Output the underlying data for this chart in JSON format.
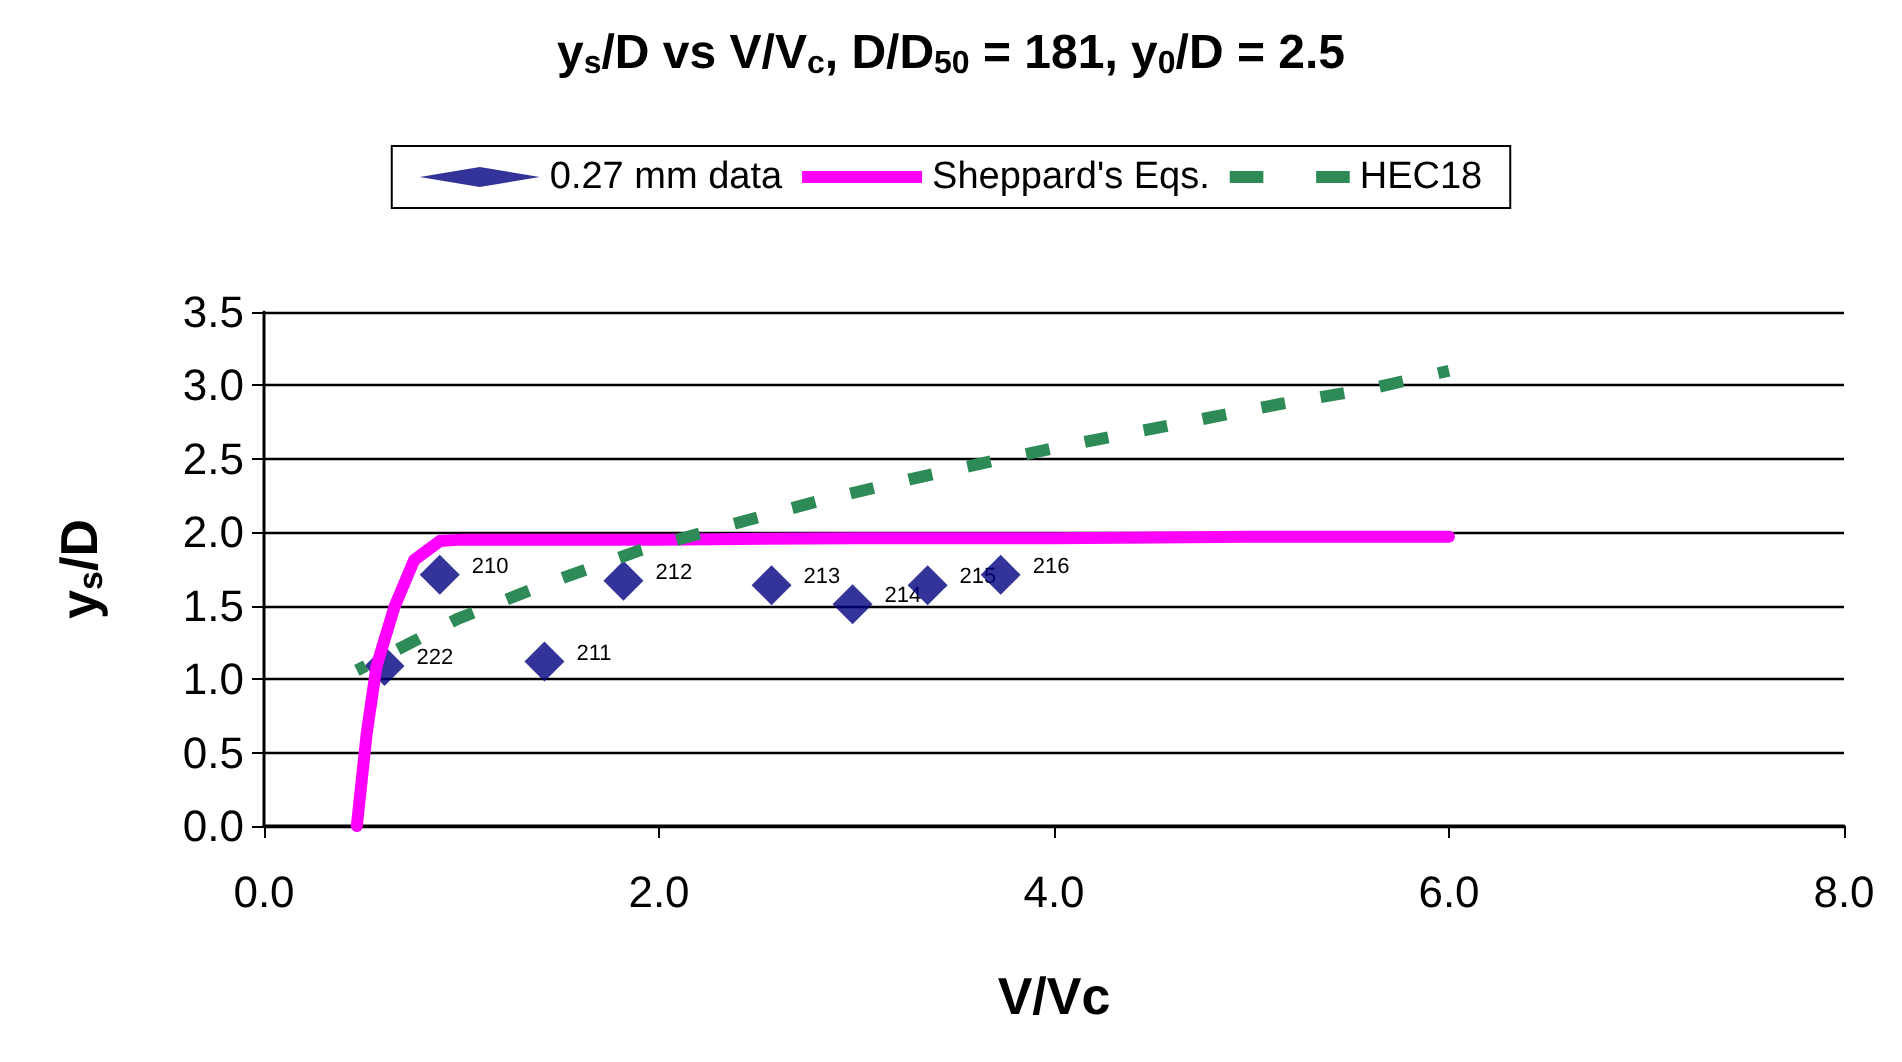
{
  "chart_data": {
    "type": "scatter",
    "title": "y$_{s}$/D vs V/V$_{c}$, D/D$_{50}$ = 181, y$_{0}$/D = 2.5",
    "xlabel": "V/Vc",
    "ylabel": "y$_{s}$/D",
    "xlim": [
      0,
      8
    ],
    "xticks": [
      {
        "value": 0,
        "label": "0.0"
      },
      {
        "value": 2,
        "label": "2.0"
      },
      {
        "value": 4,
        "label": "4.0"
      },
      {
        "value": 6,
        "label": "6.0"
      },
      {
        "value": 8,
        "label": "8.0"
      }
    ],
    "ylim": [
      0,
      3.5
    ],
    "yticks": [
      {
        "value": 0,
        "label": "0.0"
      },
      {
        "value": 0.5,
        "label": "0.5"
      },
      {
        "value": 1,
        "label": "1.0"
      },
      {
        "value": 1.5,
        "label": "1.5"
      },
      {
        "value": 2,
        "label": "2.0"
      },
      {
        "value": 2.5,
        "label": "2.5"
      },
      {
        "value": 3,
        "label": "3.0"
      },
      {
        "value": 3.5,
        "label": "3.5"
      }
    ],
    "grid": "y",
    "legend": "top",
    "annotations": [
      {
        "text": "222",
        "x": 0.61,
        "y": 1.09
      },
      {
        "text": "210",
        "x": 0.89,
        "y": 1.71
      },
      {
        "text": "211",
        "x": 1.42,
        "y": 1.12
      },
      {
        "text": "212",
        "x": 1.82,
        "y": 1.67
      },
      {
        "text": "213",
        "x": 2.57,
        "y": 1.64
      },
      {
        "text": "214",
        "x": 2.98,
        "y": 1.51
      },
      {
        "text": "215",
        "x": 3.36,
        "y": 1.64
      },
      {
        "text": "216",
        "x": 3.73,
        "y": 1.71
      }
    ],
    "series": [
      {
        "name": "0.27 mm data",
        "marker": "diamond",
        "color": "#000080",
        "x": [
          0.61,
          0.89,
          1.42,
          1.82,
          2.57,
          2.98,
          3.36,
          3.73
        ],
        "values": [
          1.09,
          1.71,
          1.12,
          1.67,
          1.64,
          1.51,
          1.64,
          1.71
        ]
      },
      {
        "name": "Sheppard's Eqs.",
        "type": "line",
        "marker": "none",
        "line_style": "solid",
        "color": "#ff00ff",
        "x": [
          0.47,
          0.52,
          0.57,
          0.66,
          0.76,
          0.89,
          1.0,
          2.0,
          3.0,
          4.0,
          5.0,
          6.0
        ],
        "values": [
          0,
          0.63,
          1.09,
          1.49,
          1.81,
          1.94,
          1.95,
          1.95,
          1.96,
          1.96,
          1.97,
          1.97
        ]
      },
      {
        "name": "HEC18",
        "type": "line",
        "marker": "none",
        "line_style": "dashed",
        "color": "#2e8b57",
        "x": [
          0.47,
          0.98,
          1.45,
          1.91,
          2.36,
          2.8,
          3.27,
          3.74,
          4.21,
          4.67,
          5.13,
          5.61,
          6.0
        ],
        "values": [
          1.06,
          1.41,
          1.66,
          1.88,
          2.05,
          2.21,
          2.36,
          2.5,
          2.63,
          2.75,
          2.87,
          2.98,
          3.1
        ]
      }
    ]
  }
}
